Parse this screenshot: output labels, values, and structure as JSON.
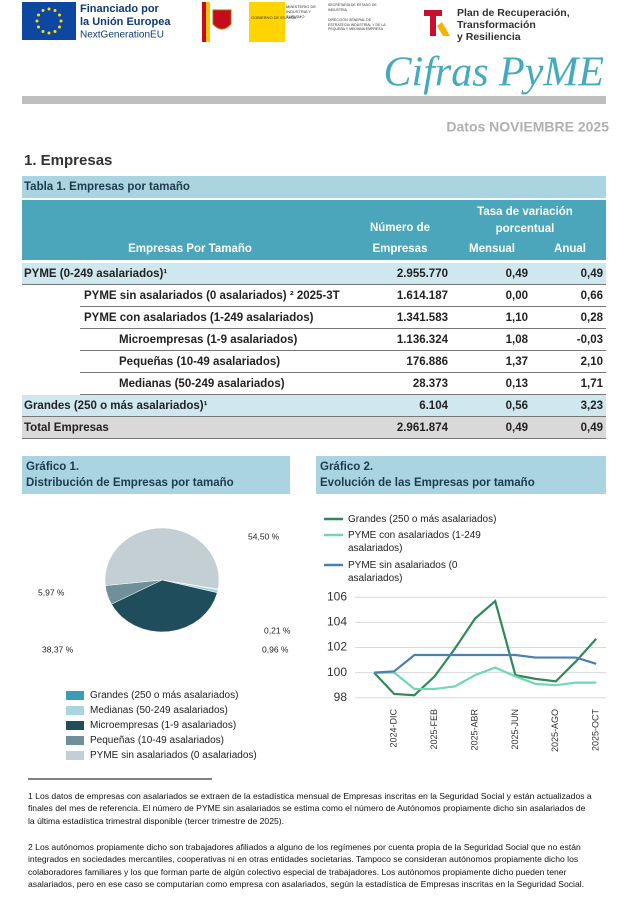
{
  "header": {
    "eu": [
      "Financiado por",
      "la Unión Europea",
      "NextGenerationEU"
    ],
    "gov": "GOBIERNO DE ESPAÑA",
    "ministry": "MINISTERIO DE INDUSTRIA Y TURISMO",
    "secretary": "SECRETARÍA DE ESTADO DE INDUSTRIA",
    "directorate": "DIRECCIÓN GENERAL DE ESTRATEGIA INDUSTRIAL Y DE LA PEQUEÑA Y MEDIANA EMPRESA",
    "plan": [
      "Plan de Recuperación,",
      "Transformación",
      "y Resiliencia"
    ],
    "title": "Cifras PyME",
    "date": "Datos NOVIEMBRE 2025"
  },
  "section": "1. Empresas",
  "table": {
    "title": "Tabla 1. Empresas por tamaño",
    "columns": [
      "Empresas Por Tamaño",
      "Número de Empresas",
      "Mensual",
      "Anual"
    ],
    "group_header": "Tasa de variación porcentual",
    "rows": [
      [
        "PYME (0-249 asalariados)¹",
        "2.955.770",
        "0,49",
        "0,49"
      ],
      [
        "PYME sin asalariados (0 asalariados) ² 2025-3T",
        "1.614.187",
        "0,00",
        "0,66"
      ],
      [
        "PYME con asalariados (1-249 asalariados)",
        "1.341.583",
        "1,10",
        "0,28"
      ],
      [
        "Microempresas (1-9 asalariados)",
        "1.136.324",
        "1,08",
        "-0,03"
      ],
      [
        "Pequeñas (10-49 asalariados)",
        "176.886",
        "1,37",
        "2,10"
      ],
      [
        "Medianas (50-249 asalariados)",
        "28.373",
        "0,13",
        "1,71"
      ],
      [
        "Grandes (250 o más asalariados)¹",
        "6.104",
        "0,56",
        "3,23"
      ],
      [
        "Total Empresas",
        "2.961.874",
        "0,49",
        "0,49"
      ]
    ]
  },
  "chart_data": [
    {
      "type": "pie",
      "label": "Gráfico 1.",
      "title": "Distribución de Empresas por tamaño",
      "categories": [
        "Grandes (250 o más asalariados)",
        "Medianas (50-249 asalariados)",
        "Microempresas (1-9 asalariados)",
        "Pequeñas (10-49 asalariados)",
        "PYME sin asalariados (0 asalariados)"
      ],
      "values": [
        0.21,
        0.96,
        38.37,
        5.97,
        54.5
      ],
      "value_labels": [
        "0,21 %",
        "0,96 %",
        "38,37 %",
        "5,97 %",
        "54,50 %"
      ],
      "colors": [
        "#3d9cb3",
        "#a8d5e0",
        "#1f4d5c",
        "#6f909a",
        "#c3cfd4"
      ]
    },
    {
      "type": "line",
      "label": "Gráfico 2.",
      "title": "Evolución de las Empresas por tamaño",
      "categories": [
        null,
        "2024-DIC",
        null,
        "2025-FEB",
        null,
        "2025-ABR",
        null,
        "2025-JUN",
        null,
        "2025-AGO",
        null,
        "2025-OCT"
      ],
      "series": [
        {
          "name": "Grandes (250 o más asalariados)",
          "color": "#2e8b57",
          "values": [
            100,
            98.3,
            98.2,
            99.7,
            101.9,
            104.3,
            105.7,
            99.8,
            99.5,
            99.3,
            100.9,
            102.7
          ]
        },
        {
          "name": "PYME con asalariados (1-249 asalariados)",
          "color": "#6fd8b0",
          "values": [
            100,
            100,
            98.7,
            98.7,
            98.9,
            99.8,
            100.4,
            99.7,
            99.1,
            99.0,
            99.2,
            99.2
          ]
        },
        {
          "name": "PYME sin asalariados (0 asalariados)",
          "color": "#4a7fb0",
          "values": [
            100,
            100.1,
            101.4,
            101.4,
            101.4,
            101.4,
            101.4,
            101.4,
            101.2,
            101.2,
            101.2,
            100.7
          ]
        }
      ],
      "ylim": [
        97.5,
        106.5
      ],
      "yticks": [
        98,
        100,
        102,
        104,
        106
      ],
      "grid": true
    }
  ],
  "footnotes": [
    "1  Los datos de empresas con asalariados se extraen de la estadística mensual de Empresas inscritas en la Seguridad Social y están actualizados a finales del mes de referencia. El número de PYME sin asalariados se estima como el número de Autónomos propiamente dicho sin asalariados de la última estadística trimestral disponible (tercer trimestre de 2025).",
    "2  Los autónomos propiamente dicho son trabajadores afiliados a alguno de los regímenes por cuenta propia de la Seguridad Social que no están integrados en sociedades mercantiles, cooperativas ni en otras entidades societarias. Tampoco se consideran autónomos propiamente dicho los colaboradores familiares y los que forman parte de algún colectivo especial de trabajadores. Los autónomos propiamente dicho pueden tener asalariados, pero en ese caso se computarian como empresa con asalariados, según la estadística de Empresas inscritas en la Seguridad Social."
  ]
}
